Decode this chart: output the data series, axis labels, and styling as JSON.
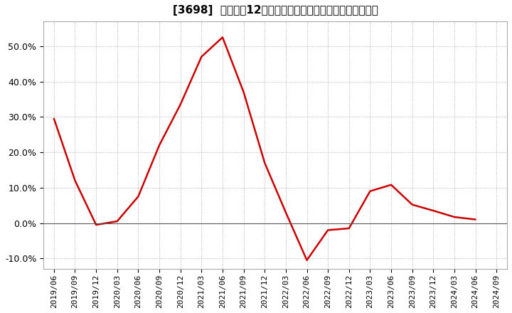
{
  "title": "[3698]  売上高の12か月移動合計の対前年同期増減率の推移",
  "line_color": "#cc0000",
  "background_color": "#ffffff",
  "plot_background": "#ffffff",
  "grid_color": "#999999",
  "ylim": [
    -0.13,
    0.57
  ],
  "yticks": [
    -0.1,
    0.0,
    0.1,
    0.2,
    0.3,
    0.4,
    0.5
  ],
  "x_labels": [
    "2019/06",
    "2019/09",
    "2019/12",
    "2020/03",
    "2020/06",
    "2020/09",
    "2020/12",
    "2021/03",
    "2021/06",
    "2021/09",
    "2021/12",
    "2022/03",
    "2022/06",
    "2022/09",
    "2022/12",
    "2023/03",
    "2023/06",
    "2023/09",
    "2023/12",
    "2024/03",
    "2024/06",
    "2024/09"
  ],
  "data_x": [
    "2019/06",
    "2019/09",
    "2019/12",
    "2020/03",
    "2020/06",
    "2020/09",
    "2020/12",
    "2021/03",
    "2021/06",
    "2021/09",
    "2021/12",
    "2022/03",
    "2022/06",
    "2022/09",
    "2022/12",
    "2023/03",
    "2023/06",
    "2023/09",
    "2023/12",
    "2024/03",
    "2024/06"
  ],
  "data_y": [
    0.295,
    0.12,
    -0.005,
    0.005,
    0.075,
    0.22,
    0.335,
    0.47,
    0.525,
    0.37,
    0.17,
    0.03,
    -0.105,
    -0.02,
    -0.015,
    0.09,
    0.108,
    0.052,
    0.035,
    0.017,
    0.01
  ],
  "title_fontsize": 11,
  "tick_fontsize": 8,
  "ytick_fontsize": 9
}
